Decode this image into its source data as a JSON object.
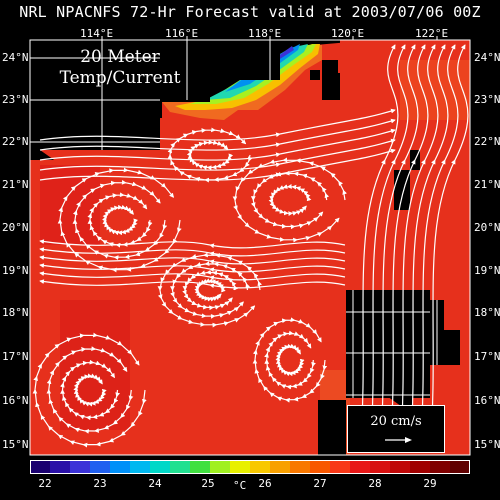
{
  "title": "NRL NPACNFS 72-Hr Forecast valid at 2003/07/06 00Z",
  "map_label_line1": "20 Meter",
  "map_label_line2": "Temp/Current",
  "lon_labels": [
    "114°E",
    "116°E",
    "118°E",
    "120°E",
    "122°E"
  ],
  "lat_labels": [
    "24°N",
    "23°N",
    "22°N",
    "21°N",
    "20°N",
    "19°N",
    "18°N",
    "17°N",
    "16°N",
    "15°N"
  ],
  "reference_vector": "20 cm/s",
  "colorbar": {
    "labels": [
      "22",
      "23",
      "24",
      "25",
      "26",
      "27",
      "28",
      "29"
    ],
    "unit": "°C",
    "colors": [
      "#1a0070",
      "#2a10a8",
      "#3b32d8",
      "#2060f0",
      "#0090f8",
      "#00b8f0",
      "#00d8c8",
      "#20e090",
      "#40e040",
      "#a0f020",
      "#e8f000",
      "#f8c800",
      "#f8a000",
      "#f87800",
      "#f85800",
      "#f83818",
      "#e81818",
      "#d81010",
      "#c00808",
      "#a00000",
      "#800000",
      "#600000"
    ]
  },
  "colors": {
    "warm_sea": "#e8301a",
    "land": "#000000",
    "grid": "#ffffff"
  }
}
